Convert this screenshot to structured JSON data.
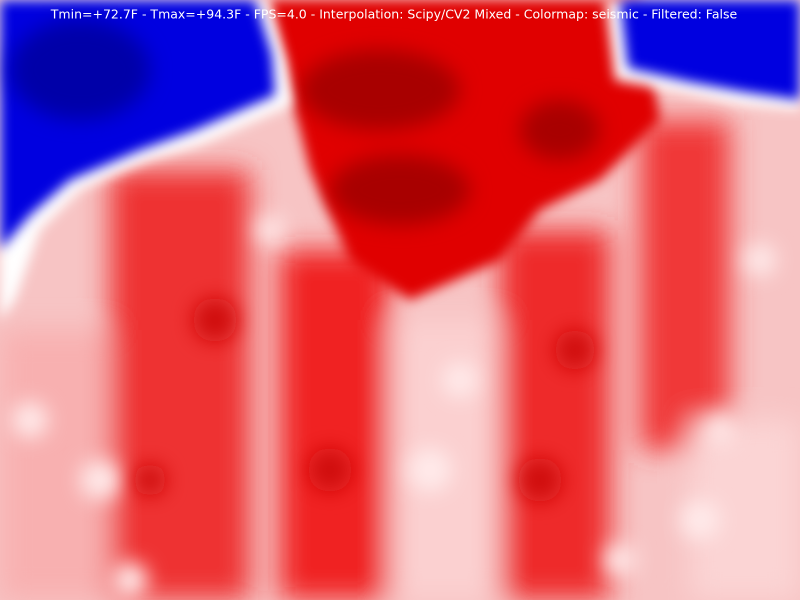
{
  "status_text": "Tmin=+72.7F - Tmax=+94.3F - FPS=4.0 - Interpolation: Scipy/CV2 Mixed - Colormap: seismic - Filtered: False"
}
